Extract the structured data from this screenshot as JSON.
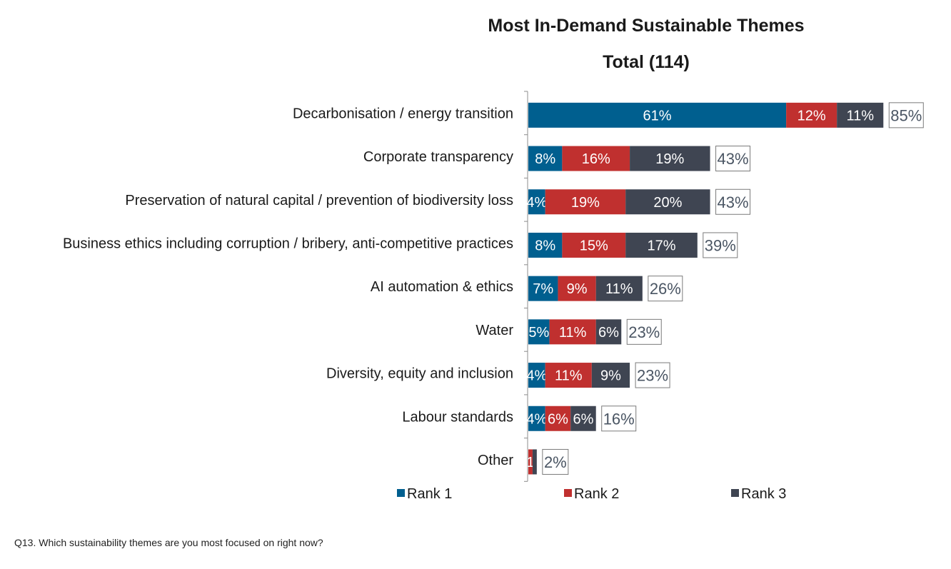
{
  "chart_data": {
    "type": "bar",
    "orientation": "horizontal",
    "stacked": true,
    "title": "Most In-Demand Sustainable Themes",
    "subtitle": "Total (114)",
    "categories": [
      "Decarbonisation / energy transition",
      "Corporate transparency",
      "Preservation of natural capital / prevention of biodiversity loss",
      "Business ethics including corruption / bribery, anti-competitive practices",
      "AI automation & ethics",
      "Water",
      "Diversity, equity and inclusion",
      "Labour standards",
      "Other"
    ],
    "series": [
      {
        "name": "Rank 1",
        "color": "#005f8f",
        "values": [
          61,
          8,
          4,
          8,
          7,
          5,
          4,
          4,
          0
        ],
        "labels": [
          "61%",
          "8%",
          "4%",
          "8%",
          "7%",
          "5%",
          "4%",
          "4%",
          ""
        ]
      },
      {
        "name": "Rank 2",
        "color": "#c0302f",
        "values": [
          12,
          16,
          19,
          15,
          9,
          11,
          11,
          6,
          1
        ],
        "labels": [
          "12%",
          "16%",
          "19%",
          "15%",
          "9%",
          "11%",
          "11%",
          "6%",
          "1"
        ]
      },
      {
        "name": "Rank 3",
        "color": "#3f4552",
        "values": [
          11,
          19,
          20,
          17,
          11,
          6,
          9,
          6,
          1
        ],
        "labels": [
          "11%",
          "19%",
          "20%",
          "17%",
          "11%",
          "6%",
          "9%",
          "6%",
          ""
        ]
      }
    ],
    "totals": [
      "85%",
      "43%",
      "43%",
      "39%",
      "26%",
      "23%",
      "23%",
      "16%",
      "2%"
    ],
    "legend_position": "bottom",
    "grid": false
  },
  "footnote": "Q13. Which sustainability themes are you most focused on right now?"
}
